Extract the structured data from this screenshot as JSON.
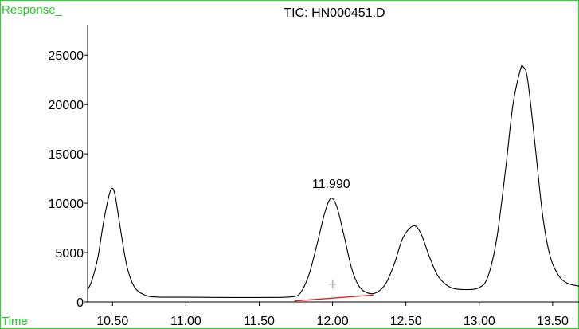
{
  "chart_data": {
    "type": "line",
    "title": "TIC: HN000451.D",
    "ylabel": "Response_",
    "xlabel": "Time",
    "xlim": [
      10.33,
      13.68
    ],
    "ylim": [
      0,
      28000
    ],
    "x_ticks": [
      "10.50",
      "11.00",
      "11.50",
      "12.00",
      "12.50",
      "13.00",
      "13.50"
    ],
    "y_ticks": [
      "0",
      "5000",
      "10000",
      "15000",
      "20000",
      "25000"
    ],
    "series": [
      {
        "points": [
          [
            10.33,
            1200
          ],
          [
            10.36,
            2200
          ],
          [
            10.4,
            4500
          ],
          [
            10.44,
            8200
          ],
          [
            10.48,
            11000
          ],
          [
            10.5,
            11500
          ],
          [
            10.52,
            10600
          ],
          [
            10.56,
            6800
          ],
          [
            10.6,
            3500
          ],
          [
            10.65,
            1500
          ],
          [
            10.72,
            700
          ],
          [
            10.8,
            500
          ],
          [
            11.0,
            480
          ],
          [
            11.2,
            460
          ],
          [
            11.4,
            450
          ],
          [
            11.6,
            460
          ],
          [
            11.72,
            520
          ],
          [
            11.78,
            900
          ],
          [
            11.84,
            2800
          ],
          [
            11.9,
            6200
          ],
          [
            11.95,
            9200
          ],
          [
            11.99,
            10500
          ],
          [
            12.03,
            9600
          ],
          [
            12.08,
            6600
          ],
          [
            12.13,
            3400
          ],
          [
            12.18,
            1600
          ],
          [
            12.24,
            900
          ],
          [
            12.3,
            950
          ],
          [
            12.36,
            1800
          ],
          [
            12.42,
            3800
          ],
          [
            12.48,
            6500
          ],
          [
            12.55,
            7700
          ],
          [
            12.6,
            7000
          ],
          [
            12.66,
            4600
          ],
          [
            12.72,
            2600
          ],
          [
            12.8,
            1500
          ],
          [
            12.9,
            1250
          ],
          [
            13.0,
            1450
          ],
          [
            13.06,
            2600
          ],
          [
            13.12,
            6500
          ],
          [
            13.18,
            13500
          ],
          [
            13.23,
            20000
          ],
          [
            13.28,
            23500
          ],
          [
            13.3,
            23800
          ],
          [
            13.33,
            22500
          ],
          [
            13.38,
            16000
          ],
          [
            13.43,
            9000
          ],
          [
            13.48,
            4800
          ],
          [
            13.54,
            2700
          ],
          [
            13.6,
            1900
          ],
          [
            13.68,
            1600
          ]
        ]
      }
    ],
    "baseline": {
      "x": [
        11.74,
        12.28
      ],
      "y": [
        100,
        700
      ],
      "color": "#dd2222"
    },
    "annotations": [
      {
        "text": "11.990",
        "x": 11.99,
        "y": 10500
      }
    ],
    "marker": {
      "x": 12.0,
      "y": 1800,
      "symbol": "+"
    },
    "grid": false,
    "line_color": "#000000",
    "frame_color": "#22dd22"
  }
}
